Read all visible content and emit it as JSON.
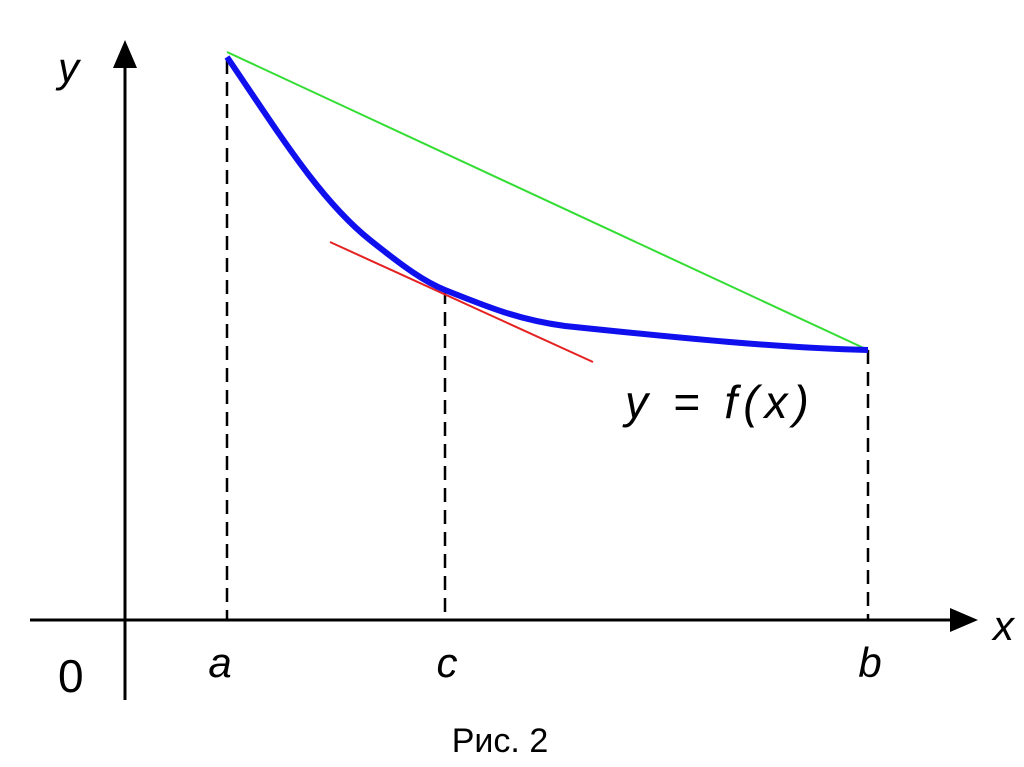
{
  "axes": {
    "y": "y",
    "x": "x",
    "origin": "0"
  },
  "points": {
    "a": "a",
    "c": "c",
    "b": "b"
  },
  "function_label": "y = f(x)",
  "caption": "Рис. 2"
}
